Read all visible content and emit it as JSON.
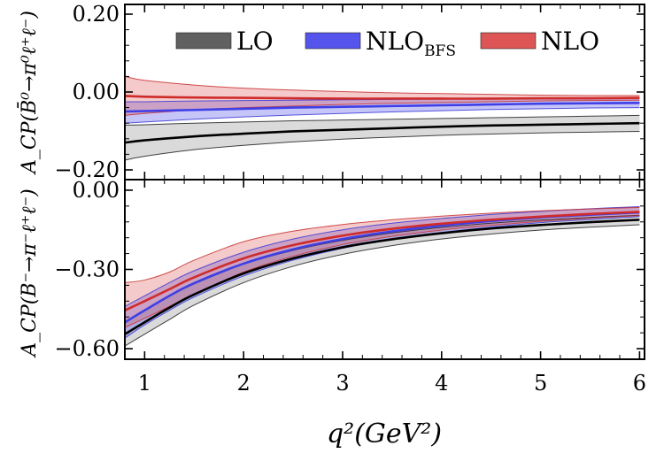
{
  "chart_data": {
    "type": "line",
    "colors": {
      "LO": "#000000",
      "NLO_BFS": "#3f3fe6",
      "NLO": "#cf2b2b"
    },
    "legend": [
      {
        "key": "LO",
        "label": "LO",
        "color": "#606060",
        "sub": ""
      },
      {
        "key": "NLO_BFS",
        "label": "NLO",
        "sub": "BFS",
        "color": "#5555ee"
      },
      {
        "key": "NLO",
        "label": "NLO",
        "sub": "",
        "color": "#dd5555"
      }
    ],
    "xlabel": "q²(GeV²)",
    "xlim": [
      0.8,
      6.05
    ],
    "x_ticks": [
      {
        "value": 1,
        "label": "1"
      },
      {
        "value": 2,
        "label": "2"
      },
      {
        "value": 3,
        "label": "3"
      },
      {
        "value": 4,
        "label": "4"
      },
      {
        "value": 5,
        "label": "5"
      },
      {
        "value": 6,
        "label": "6"
      }
    ],
    "panels": [
      {
        "id": "top",
        "ylabel": "A_CP(B̄⁰→π⁰ℓ⁺ℓ⁻)",
        "ylim": [
          -0.225,
          0.225
        ],
        "y_ticks": [
          {
            "value": 0.2,
            "label": "0.20"
          },
          {
            "value": 0.0,
            "label": "0.00"
          },
          {
            "value": -0.2,
            "label": "−0.20"
          }
        ],
        "x": [
          0.8,
          1.0,
          1.5,
          2.0,
          2.5,
          3.0,
          3.5,
          4.0,
          4.5,
          5.0,
          5.5,
          6.0
        ],
        "series": [
          {
            "name": "LO",
            "central": [
              -0.13,
              -0.124,
              -0.114,
              -0.107,
              -0.101,
              -0.097,
              -0.093,
              -0.089,
              -0.086,
              -0.084,
              -0.082,
              -0.08
            ],
            "lower": [
              -0.175,
              -0.165,
              -0.148,
              -0.137,
              -0.128,
              -0.121,
              -0.116,
              -0.111,
              -0.108,
              -0.105,
              -0.103,
              -0.101
            ],
            "upper": [
              -0.085,
              -0.084,
              -0.08,
              -0.077,
              -0.074,
              -0.072,
              -0.07,
              -0.068,
              -0.066,
              -0.064,
              -0.062,
              -0.06
            ]
          },
          {
            "name": "NLO_BFS",
            "central": [
              -0.05,
              -0.049,
              -0.046,
              -0.043,
              -0.04,
              -0.038,
              -0.036,
              -0.034,
              -0.032,
              -0.03,
              -0.029,
              -0.028
            ],
            "lower": [
              -0.08,
              -0.077,
              -0.07,
              -0.064,
              -0.059,
              -0.055,
              -0.051,
              -0.048,
              -0.045,
              -0.043,
              -0.041,
              -0.04
            ],
            "upper": [
              -0.025,
              -0.025,
              -0.023,
              -0.022,
              -0.021,
              -0.02,
              -0.019,
              -0.018,
              -0.017,
              -0.016,
              -0.015,
              -0.014
            ]
          },
          {
            "name": "NLO",
            "central": [
              -0.01,
              -0.012,
              -0.014,
              -0.015,
              -0.016,
              -0.017,
              -0.017,
              -0.017,
              -0.017,
              -0.016,
              -0.016,
              -0.015
            ],
            "lower": [
              -0.06,
              -0.055,
              -0.046,
              -0.04,
              -0.036,
              -0.032,
              -0.029,
              -0.027,
              -0.025,
              -0.023,
              -0.022,
              -0.021
            ],
            "upper": [
              0.04,
              0.03,
              0.018,
              0.01,
              0.005,
              0.001,
              -0.002,
              -0.004,
              -0.006,
              -0.008,
              -0.009,
              -0.009
            ]
          }
        ]
      },
      {
        "id": "bottom",
        "ylabel": "A_CP(B⁻→π⁻ℓ⁺ℓ⁻)",
        "ylim": [
          -0.64,
          0.04
        ],
        "y_ticks": [
          {
            "value": 0.0,
            "label": "0.00"
          },
          {
            "value": -0.3,
            "label": "−0.30"
          },
          {
            "value": -0.6,
            "label": "−0.60"
          }
        ],
        "x": [
          0.8,
          1.0,
          1.25,
          1.5,
          2.0,
          2.5,
          3.0,
          3.5,
          4.0,
          4.5,
          5.0,
          5.5,
          6.0
        ],
        "series": [
          {
            "name": "LO",
            "central": [
              -0.545,
              -0.5,
              -0.445,
              -0.395,
              -0.315,
              -0.258,
              -0.216,
              -0.186,
              -0.163,
              -0.145,
              -0.132,
              -0.121,
              -0.112
            ],
            "lower": [
              -0.59,
              -0.545,
              -0.49,
              -0.435,
              -0.35,
              -0.288,
              -0.243,
              -0.21,
              -0.185,
              -0.166,
              -0.151,
              -0.14,
              -0.131
            ],
            "upper": [
              -0.5,
              -0.455,
              -0.4,
              -0.355,
              -0.28,
              -0.228,
              -0.19,
              -0.162,
              -0.141,
              -0.125,
              -0.113,
              -0.103,
              -0.095
            ]
          },
          {
            "name": "NLO_BFS",
            "central": [
              -0.5,
              -0.455,
              -0.4,
              -0.352,
              -0.278,
              -0.224,
              -0.185,
              -0.156,
              -0.134,
              -0.117,
              -0.103,
              -0.093,
              -0.084
            ],
            "lower": [
              -0.56,
              -0.51,
              -0.455,
              -0.405,
              -0.325,
              -0.265,
              -0.22,
              -0.186,
              -0.16,
              -0.14,
              -0.123,
              -0.111,
              -0.1
            ],
            "upper": [
              -0.44,
              -0.4,
              -0.35,
              -0.305,
              -0.235,
              -0.185,
              -0.15,
              -0.125,
              -0.107,
              -0.092,
              -0.08,
              -0.07,
              -0.062
            ]
          },
          {
            "name": "NLO",
            "central": [
              -0.455,
              -0.42,
              -0.375,
              -0.33,
              -0.258,
              -0.208,
              -0.172,
              -0.146,
              -0.127,
              -0.112,
              -0.1,
              -0.09,
              -0.082
            ],
            "lower": [
              -0.52,
              -0.485,
              -0.44,
              -0.395,
              -0.31,
              -0.25,
              -0.206,
              -0.175,
              -0.151,
              -0.133,
              -0.118,
              -0.106,
              -0.096
            ],
            "upper": [
              -0.35,
              -0.34,
              -0.31,
              -0.265,
              -0.195,
              -0.155,
              -0.13,
              -0.112,
              -0.098,
              -0.087,
              -0.078,
              -0.071,
              -0.065
            ]
          }
        ]
      }
    ]
  }
}
